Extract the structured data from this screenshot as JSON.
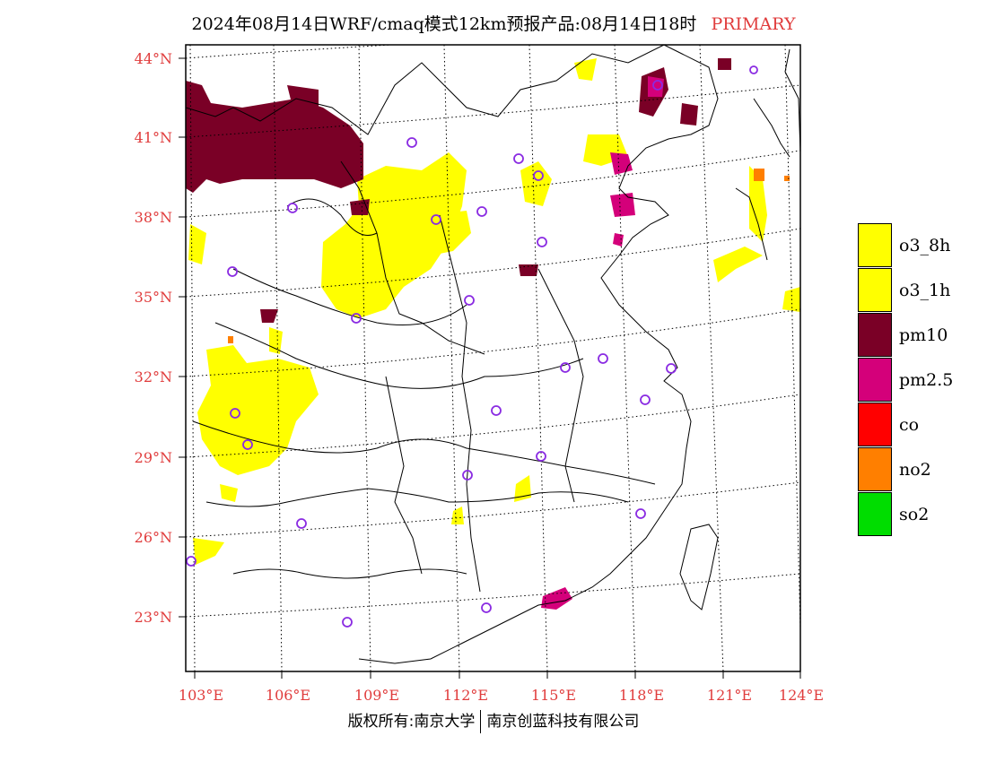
{
  "title": {
    "main": "2024年08月14日WRF/cmaq模式12km预报产品:08月14日18时",
    "tag": "PRIMARY"
  },
  "axes": {
    "lat_labels": [
      "44°N",
      "41°N",
      "38°N",
      "35°N",
      "32°N",
      "29°N",
      "26°N",
      "23°N"
    ],
    "lon_labels": [
      "103°E",
      "106°E",
      "109°E",
      "112°E",
      "115°E",
      "118°E",
      "121°E",
      "124°E"
    ]
  },
  "legend": [
    {
      "label": "o3_8h",
      "color": "#ffff00"
    },
    {
      "label": "o3_1h",
      "color": "#ffff00"
    },
    {
      "label": "pm10",
      "color": "#7a0026"
    },
    {
      "label": "pm2.5",
      "color": "#d4007a"
    },
    {
      "label": "co",
      "color": "#ff0000"
    },
    {
      "label": "no2",
      "color": "#ff7f00"
    },
    {
      "label": "so2",
      "color": "#00dd00"
    }
  ],
  "footer": {
    "left": "版权所有:南京大学",
    "right": "南京创蓝科技有限公司"
  },
  "colors": {
    "axis_label": "#e03c3c",
    "station_marker": "#8a2be2"
  }
}
